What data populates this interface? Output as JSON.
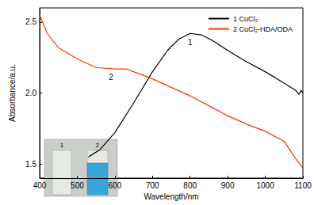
{
  "chart_data": {
    "type": "line",
    "x_label": "Wavelength/nm",
    "y_label": "Absorbance/a.u.",
    "xlim": [
      400,
      1100
    ],
    "xticks": [
      400,
      500,
      600,
      700,
      800,
      900,
      1000,
      1100
    ],
    "ylim": [
      1.4,
      2.6
    ],
    "yticks": [
      1.5,
      {
        "value": 2,
        "label": "2.0"
      },
      2.5
    ],
    "grid": false,
    "legend": "top-right",
    "series": [
      {
        "name": "1 CuCl₂",
        "color": "#000000",
        "x": [
          530,
          560,
          600,
          650,
          700,
          740,
          770,
          800,
          830,
          860,
          900,
          950,
          1000,
          1050,
          1080,
          1090,
          1095,
          1100
        ],
        "values": [
          1.55,
          1.6,
          1.72,
          1.93,
          2.15,
          2.3,
          2.38,
          2.42,
          2.41,
          2.37,
          2.3,
          2.22,
          2.15,
          2.07,
          2.02,
          1.99,
          2.02,
          2.0
        ]
      },
      {
        "name": "2 CuCl₂-HDA/ODA",
        "color": "#ff3300",
        "x": [
          400,
          420,
          450,
          500,
          550,
          600,
          630,
          650,
          700,
          750,
          800,
          850,
          900,
          950,
          1000,
          1050,
          1080,
          1100
        ],
        "values": [
          2.55,
          2.42,
          2.32,
          2.24,
          2.18,
          2.17,
          2.17,
          2.15,
          2.1,
          2.04,
          1.98,
          1.91,
          1.84,
          1.78,
          1.73,
          1.66,
          1.54,
          1.47
        ]
      }
    ],
    "annotations": [
      {
        "text": "1",
        "x": 800,
        "y": 2.36
      },
      {
        "text": "2",
        "x": 590,
        "y": 2.11
      }
    ],
    "inset_labels": [
      "1",
      "2"
    ]
  }
}
